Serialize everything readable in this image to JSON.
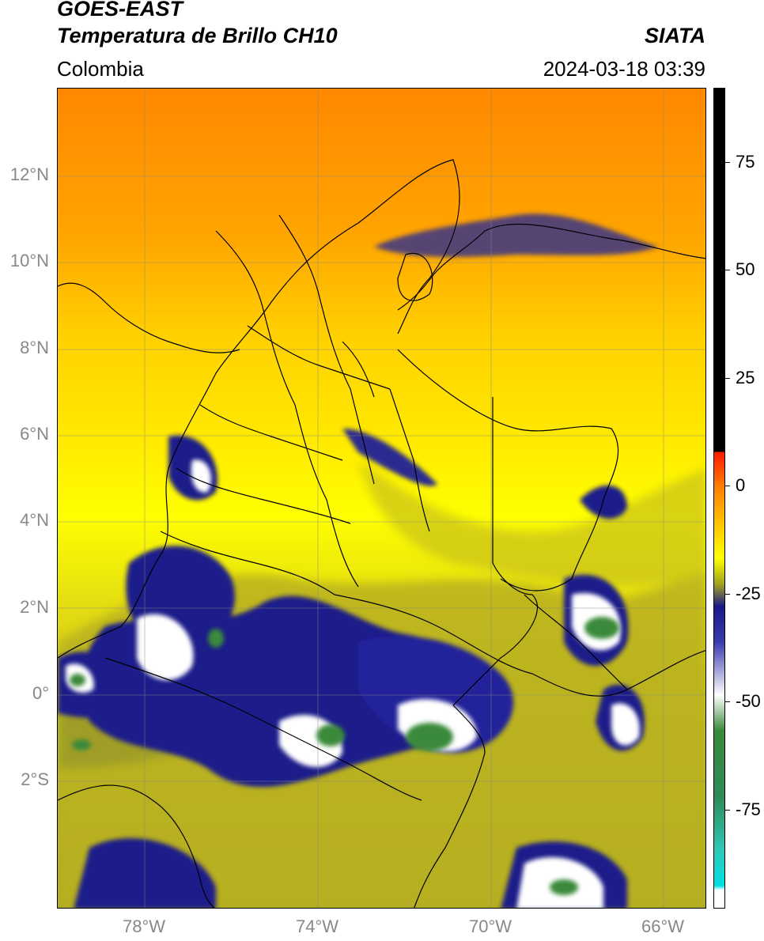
{
  "header": {
    "satellite": "GOES-EAST",
    "product": "Temperatura de Brillo CH10",
    "region": "Colombia",
    "source": "SIATA",
    "datetime": "2024-03-18 03:39"
  },
  "axes": {
    "lat_ticks": [
      "12°N",
      "10°N",
      "8°N",
      "6°N",
      "4°N",
      "2°N",
      "0°",
      "2°S"
    ],
    "lon_ticks": [
      "78°W",
      "74°W",
      "70°W",
      "66°W"
    ]
  },
  "colorbar": {
    "labels": [
      "75",
      "50",
      "25",
      "0",
      "-25",
      "-50",
      "-75"
    ],
    "stops": [
      {
        "v": 90,
        "c": "#000000"
      },
      {
        "v": 8,
        "c": "#000000"
      },
      {
        "v": 7.9,
        "c": "#ff1a00"
      },
      {
        "v": 0,
        "c": "#ff7f00"
      },
      {
        "v": -10,
        "c": "#ffd200"
      },
      {
        "v": -16,
        "c": "#ffff00"
      },
      {
        "v": -22,
        "c": "#a0a020"
      },
      {
        "v": -27,
        "c": "#1a1a8a"
      },
      {
        "v": -35,
        "c": "#3a3ab0"
      },
      {
        "v": -47,
        "c": "#ffffff"
      },
      {
        "v": -55,
        "c": "#3a8a3a"
      },
      {
        "v": -70,
        "c": "#2e8b57"
      },
      {
        "v": -82,
        "c": "#30c8b8"
      },
      {
        "v": -90,
        "c": "#00e0e0"
      },
      {
        "v": -91,
        "c": "#ffffff"
      }
    ]
  },
  "colors": {
    "cold_top": "#1a1a8a",
    "warm_north": "#ff8c00",
    "mid_yellow": "#ffff00",
    "olive": "#b0b020"
  }
}
